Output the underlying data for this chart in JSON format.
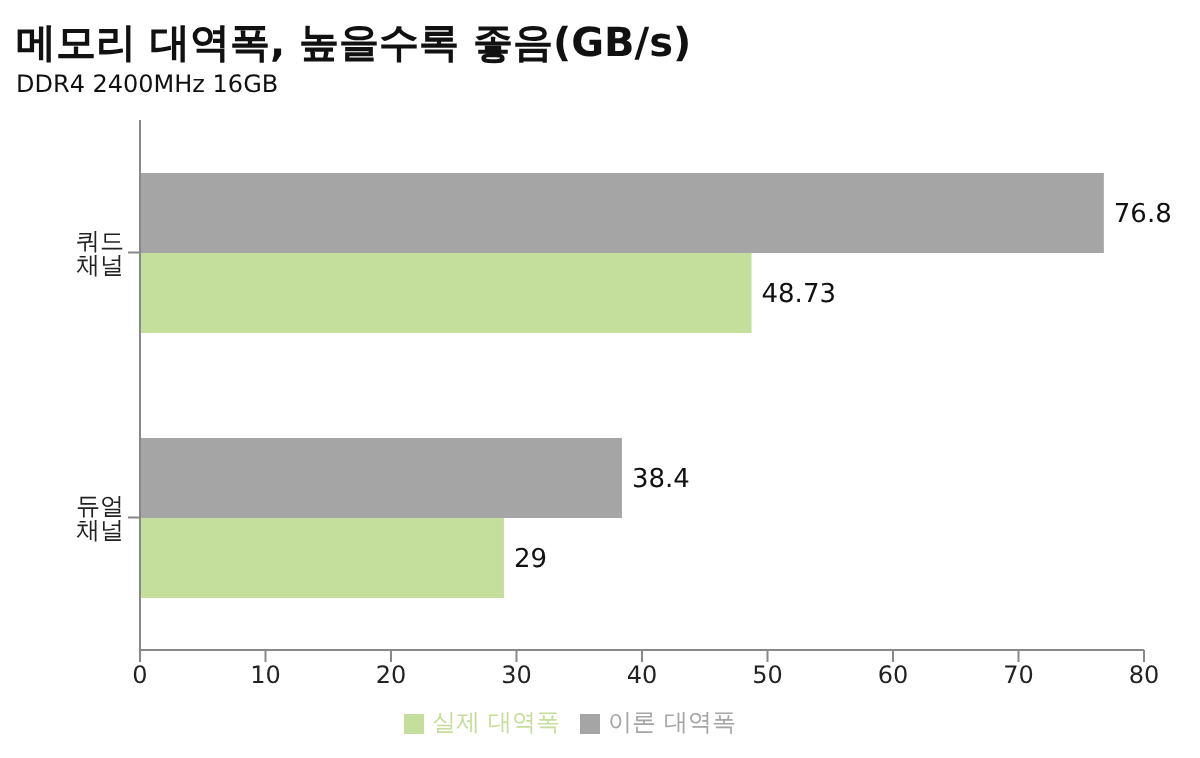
{
  "chart_data": {
    "type": "bar",
    "orientation": "horizontal",
    "title": "메모리 대역폭, 높을수록 좋음(GB/s)",
    "subtitle": "DDR4 2400MHz 16GB",
    "categories": [
      "쿼드 채널",
      "듀얼 채널"
    ],
    "series": [
      {
        "name": "이론 대역폭",
        "color": "#a5a5a5",
        "values": [
          76.8,
          38.4
        ]
      },
      {
        "name": "실제 대역폭",
        "color": "#c4df9b",
        "values": [
          48.73,
          29
        ]
      }
    ],
    "xlim": [
      0,
      80
    ],
    "xticks": [
      0,
      10,
      20,
      30,
      40,
      50,
      60,
      70,
      80
    ],
    "data_labels": true,
    "legend": "bottom",
    "grid": false
  }
}
